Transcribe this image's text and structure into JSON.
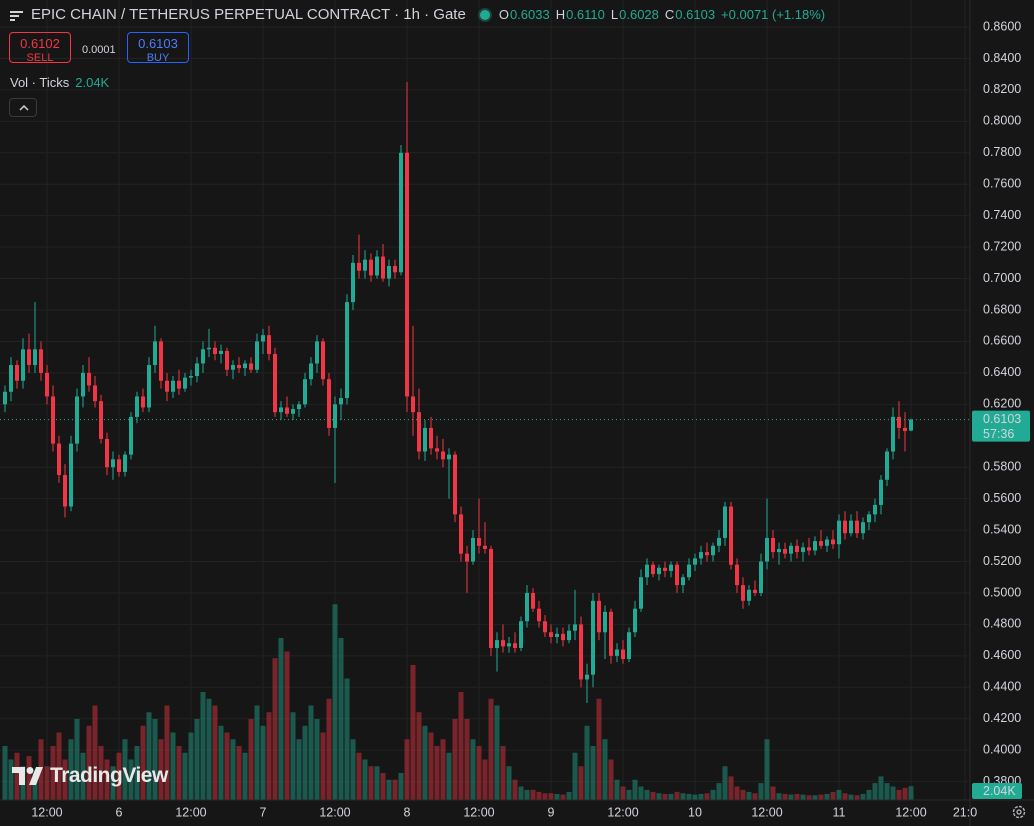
{
  "chart_data": {
    "type": "candlestick",
    "title": "EPIC CHAIN / TETHERUS PERPETUAL CONTRACT · 1h · Gate",
    "legend": [
      {
        "label": "O",
        "value": "0.6033"
      },
      {
        "label": "H",
        "value": "0.6110"
      },
      {
        "label": "L",
        "value": "0.6028"
      },
      {
        "label": "C",
        "value": "0.6103"
      }
    ],
    "change": "+0.0071 (+1.18%)",
    "sell": {
      "price": "0.6102",
      "label": "SELL"
    },
    "spread": "0.0001",
    "buy": {
      "price": "0.6103",
      "label": "BUY"
    },
    "volume_title": "Vol · Ticks",
    "volume_label": "2.04K",
    "last_price": {
      "price": 0.6103,
      "label": "0.6103",
      "countdown": "57:36"
    },
    "watermark": "TradingView",
    "up_color": "#22ab94",
    "down_color": "#f23645",
    "grid": true,
    "xlim": [
      -0.833,
      160.833
    ],
    "ylim": [
      0.3683,
      0.8772
    ],
    "volume_lim": [
      0,
      40000
    ],
    "xticks": [
      {
        "value": 7,
        "label": "12:00"
      },
      {
        "value": 19,
        "label": "6"
      },
      {
        "value": 31,
        "label": "12:00"
      },
      {
        "value": 43,
        "label": "7"
      },
      {
        "value": 55,
        "label": "12:00"
      },
      {
        "value": 67,
        "label": "8"
      },
      {
        "value": 79,
        "label": "12:00"
      },
      {
        "value": 91,
        "label": "9"
      },
      {
        "value": 103,
        "label": "12:00"
      },
      {
        "value": 115,
        "label": "10"
      },
      {
        "value": 127,
        "label": "12:00"
      },
      {
        "value": 139,
        "label": "11"
      },
      {
        "value": 151,
        "label": "12:00"
      },
      {
        "value": 160,
        "label": "21:0"
      }
    ],
    "yticks": [
      {
        "value": 0.38,
        "label": "0.3800"
      },
      {
        "value": 0.4,
        "label": "0.4000"
      },
      {
        "value": 0.42,
        "label": "0.4200"
      },
      {
        "value": 0.44,
        "label": "0.4400"
      },
      {
        "value": 0.46,
        "label": "0.4600"
      },
      {
        "value": 0.48,
        "label": "0.4800"
      },
      {
        "value": 0.5,
        "label": "0.5000"
      },
      {
        "value": 0.52,
        "label": "0.5200"
      },
      {
        "value": 0.54,
        "label": "0.5400"
      },
      {
        "value": 0.56,
        "label": "0.5600"
      },
      {
        "value": 0.58,
        "label": "0.5800"
      },
      {
        "value": 0.62,
        "label": "0.6200"
      },
      {
        "value": 0.64,
        "label": "0.6400"
      },
      {
        "value": 0.66,
        "label": "0.6600"
      },
      {
        "value": 0.68,
        "label": "0.6800"
      },
      {
        "value": 0.7,
        "label": "0.7000"
      },
      {
        "value": 0.72,
        "label": "0.7200"
      },
      {
        "value": 0.74,
        "label": "0.7400"
      },
      {
        "value": 0.76,
        "label": "0.7600"
      },
      {
        "value": 0.78,
        "label": "0.7800"
      },
      {
        "value": 0.8,
        "label": "0.8000"
      },
      {
        "value": 0.82,
        "label": "0.8200"
      },
      {
        "value": 0.84,
        "label": "0.8400"
      },
      {
        "value": 0.86,
        "label": "0.8600"
      }
    ],
    "candles": [
      [
        0.62,
        0.632,
        0.615,
        0.628
      ],
      [
        0.628,
        0.65,
        0.622,
        0.645
      ],
      [
        0.645,
        0.648,
        0.63,
        0.635
      ],
      [
        0.635,
        0.662,
        0.63,
        0.655
      ],
      [
        0.655,
        0.665,
        0.64,
        0.645
      ],
      [
        0.645,
        0.685,
        0.64,
        0.655
      ],
      [
        0.655,
        0.66,
        0.635,
        0.64
      ],
      [
        0.64,
        0.645,
        0.62,
        0.625
      ],
      [
        0.625,
        0.632,
        0.59,
        0.595
      ],
      [
        0.595,
        0.6,
        0.57,
        0.575
      ],
      [
        0.575,
        0.582,
        0.548,
        0.555
      ],
      [
        0.555,
        0.6,
        0.552,
        0.595
      ],
      [
        0.595,
        0.63,
        0.59,
        0.625
      ],
      [
        0.625,
        0.645,
        0.618,
        0.64
      ],
      [
        0.64,
        0.65,
        0.628,
        0.632
      ],
      [
        0.632,
        0.638,
        0.618,
        0.622
      ],
      [
        0.622,
        0.626,
        0.595,
        0.598
      ],
      [
        0.598,
        0.602,
        0.575,
        0.58
      ],
      [
        0.58,
        0.59,
        0.572,
        0.585
      ],
      [
        0.585,
        0.588,
        0.574,
        0.577
      ],
      [
        0.577,
        0.59,
        0.574,
        0.588
      ],
      [
        0.588,
        0.615,
        0.585,
        0.612
      ],
      [
        0.612,
        0.628,
        0.608,
        0.625
      ],
      [
        0.625,
        0.63,
        0.615,
        0.618
      ],
      [
        0.618,
        0.65,
        0.615,
        0.645
      ],
      [
        0.645,
        0.67,
        0.64,
        0.66
      ],
      [
        0.66,
        0.662,
        0.63,
        0.635
      ],
      [
        0.635,
        0.64,
        0.622,
        0.628
      ],
      [
        0.628,
        0.638,
        0.624,
        0.635
      ],
      [
        0.635,
        0.642,
        0.626,
        0.63
      ],
      [
        0.63,
        0.64,
        0.628,
        0.637
      ],
      [
        0.637,
        0.642,
        0.632,
        0.638
      ],
      [
        0.638,
        0.65,
        0.634,
        0.646
      ],
      [
        0.646,
        0.66,
        0.64,
        0.655
      ],
      [
        0.655,
        0.668,
        0.65,
        0.656
      ],
      [
        0.656,
        0.66,
        0.648,
        0.652
      ],
      [
        0.652,
        0.658,
        0.646,
        0.654
      ],
      [
        0.654,
        0.656,
        0.638,
        0.642
      ],
      [
        0.642,
        0.648,
        0.636,
        0.645
      ],
      [
        0.645,
        0.65,
        0.64,
        0.643
      ],
      [
        0.643,
        0.648,
        0.638,
        0.646
      ],
      [
        0.646,
        0.65,
        0.64,
        0.642
      ],
      [
        0.642,
        0.665,
        0.64,
        0.66
      ],
      [
        0.66,
        0.668,
        0.652,
        0.664
      ],
      [
        0.664,
        0.67,
        0.648,
        0.652
      ],
      [
        0.652,
        0.656,
        0.612,
        0.615
      ],
      [
        0.615,
        0.622,
        0.61,
        0.618
      ],
      [
        0.618,
        0.625,
        0.612,
        0.614
      ],
      [
        0.614,
        0.62,
        0.61,
        0.617
      ],
      [
        0.617,
        0.622,
        0.612,
        0.62
      ],
      [
        0.62,
        0.64,
        0.618,
        0.636
      ],
      [
        0.636,
        0.65,
        0.632,
        0.646
      ],
      [
        0.646,
        0.664,
        0.64,
        0.66
      ],
      [
        0.66,
        0.662,
        0.632,
        0.636
      ],
      [
        0.636,
        0.64,
        0.6,
        0.605
      ],
      [
        0.605,
        0.625,
        0.57,
        0.62
      ],
      [
        0.62,
        0.63,
        0.61,
        0.624
      ],
      [
        0.624,
        0.69,
        0.62,
        0.685
      ],
      [
        0.685,
        0.715,
        0.68,
        0.71
      ],
      [
        0.71,
        0.728,
        0.7,
        0.705
      ],
      [
        0.705,
        0.718,
        0.7,
        0.712
      ],
      [
        0.712,
        0.716,
        0.698,
        0.702
      ],
      [
        0.702,
        0.718,
        0.7,
        0.714
      ],
      [
        0.714,
        0.722,
        0.698,
        0.7
      ],
      [
        0.7,
        0.712,
        0.695,
        0.708
      ],
      [
        0.708,
        0.712,
        0.7,
        0.704
      ],
      [
        0.704,
        0.785,
        0.702,
        0.78
      ],
      [
        0.78,
        0.825,
        0.615,
        0.625
      ],
      [
        0.625,
        0.67,
        0.6,
        0.615
      ],
      [
        0.615,
        0.63,
        0.585,
        0.59
      ],
      [
        0.59,
        0.61,
        0.584,
        0.605
      ],
      [
        0.605,
        0.612,
        0.588,
        0.592
      ],
      [
        0.592,
        0.6,
        0.585,
        0.59
      ],
      [
        0.59,
        0.598,
        0.58,
        0.585
      ],
      [
        0.585,
        0.592,
        0.56,
        0.588
      ],
      [
        0.588,
        0.59,
        0.545,
        0.55
      ],
      [
        0.55,
        0.555,
        0.52,
        0.525
      ],
      [
        0.525,
        0.53,
        0.5,
        0.52
      ],
      [
        0.52,
        0.54,
        0.518,
        0.535
      ],
      [
        0.535,
        0.56,
        0.525,
        0.53
      ],
      [
        0.53,
        0.545,
        0.525,
        0.528
      ],
      [
        0.528,
        0.53,
        0.46,
        0.465
      ],
      [
        0.465,
        0.475,
        0.45,
        0.47
      ],
      [
        0.47,
        0.48,
        0.462,
        0.466
      ],
      [
        0.466,
        0.472,
        0.462,
        0.468
      ],
      [
        0.468,
        0.475,
        0.462,
        0.465
      ],
      [
        0.465,
        0.485,
        0.463,
        0.482
      ],
      [
        0.482,
        0.505,
        0.478,
        0.5
      ],
      [
        0.5,
        0.503,
        0.488,
        0.49
      ],
      [
        0.49,
        0.495,
        0.478,
        0.482
      ],
      [
        0.482,
        0.486,
        0.472,
        0.475
      ],
      [
        0.475,
        0.48,
        0.468,
        0.472
      ],
      [
        0.472,
        0.478,
        0.468,
        0.474
      ],
      [
        0.474,
        0.478,
        0.466,
        0.47
      ],
      [
        0.47,
        0.48,
        0.468,
        0.476
      ],
      [
        0.476,
        0.502,
        0.47,
        0.48
      ],
      [
        0.48,
        0.485,
        0.44,
        0.445
      ],
      [
        0.445,
        0.455,
        0.43,
        0.448
      ],
      [
        0.448,
        0.5,
        0.44,
        0.495
      ],
      [
        0.495,
        0.5,
        0.47,
        0.475
      ],
      [
        0.475,
        0.492,
        0.458,
        0.488
      ],
      [
        0.488,
        0.49,
        0.455,
        0.46
      ],
      [
        0.46,
        0.468,
        0.456,
        0.464
      ],
      [
        0.464,
        0.47,
        0.455,
        0.458
      ],
      [
        0.458,
        0.478,
        0.456,
        0.475
      ],
      [
        0.475,
        0.495,
        0.472,
        0.49
      ],
      [
        0.49,
        0.515,
        0.488,
        0.51
      ],
      [
        0.51,
        0.522,
        0.505,
        0.518
      ],
      [
        0.518,
        0.52,
        0.51,
        0.512
      ],
      [
        0.512,
        0.518,
        0.508,
        0.516
      ],
      [
        0.516,
        0.52,
        0.51,
        0.514
      ],
      [
        0.514,
        0.52,
        0.51,
        0.518
      ],
      [
        0.518,
        0.52,
        0.5,
        0.505
      ],
      [
        0.505,
        0.512,
        0.5,
        0.51
      ],
      [
        0.51,
        0.522,
        0.508,
        0.518
      ],
      [
        0.518,
        0.525,
        0.514,
        0.522
      ],
      [
        0.522,
        0.53,
        0.518,
        0.526
      ],
      [
        0.526,
        0.532,
        0.52,
        0.524
      ],
      [
        0.524,
        0.532,
        0.52,
        0.53
      ],
      [
        0.53,
        0.54,
        0.526,
        0.535
      ],
      [
        0.535,
        0.558,
        0.53,
        0.555
      ],
      [
        0.555,
        0.558,
        0.515,
        0.518
      ],
      [
        0.518,
        0.522,
        0.5,
        0.505
      ],
      [
        0.505,
        0.51,
        0.49,
        0.495
      ],
      [
        0.495,
        0.505,
        0.492,
        0.502
      ],
      [
        0.502,
        0.508,
        0.498,
        0.5
      ],
      [
        0.5,
        0.525,
        0.498,
        0.52
      ],
      [
        0.52,
        0.56,
        0.515,
        0.535
      ],
      [
        0.535,
        0.54,
        0.522,
        0.526
      ],
      [
        0.526,
        0.532,
        0.518,
        0.528
      ],
      [
        0.528,
        0.532,
        0.522,
        0.525
      ],
      [
        0.525,
        0.532,
        0.52,
        0.53
      ],
      [
        0.53,
        0.534,
        0.522,
        0.526
      ],
      [
        0.526,
        0.532,
        0.52,
        0.529
      ],
      [
        0.529,
        0.535,
        0.524,
        0.527
      ],
      [
        0.527,
        0.536,
        0.524,
        0.533
      ],
      [
        0.533,
        0.54,
        0.528,
        0.53
      ],
      [
        0.53,
        0.536,
        0.526,
        0.534
      ],
      [
        0.534,
        0.54,
        0.528,
        0.531
      ],
      [
        0.531,
        0.55,
        0.522,
        0.546
      ],
      [
        0.546,
        0.552,
        0.534,
        0.538
      ],
      [
        0.538,
        0.55,
        0.536,
        0.546
      ],
      [
        0.546,
        0.552,
        0.535,
        0.538
      ],
      [
        0.538,
        0.548,
        0.534,
        0.545
      ],
      [
        0.545,
        0.552,
        0.54,
        0.55
      ],
      [
        0.55,
        0.56,
        0.545,
        0.556
      ],
      [
        0.556,
        0.575,
        0.55,
        0.572
      ],
      [
        0.572,
        0.592,
        0.568,
        0.59
      ],
      [
        0.59,
        0.618,
        0.585,
        0.612
      ],
      [
        0.612,
        0.622,
        0.598,
        0.605
      ],
      [
        0.605,
        0.615,
        0.59,
        0.603
      ],
      [
        0.6033,
        0.611,
        0.6028,
        0.6103
      ]
    ],
    "volume": [
      8000,
      6000,
      7000,
      5000,
      6500,
      4000,
      9000,
      5000,
      8000,
      10000,
      6000,
      9000,
      12000,
      7000,
      11000,
      14000,
      8000,
      6000,
      5000,
      7000,
      9000,
      6000,
      8000,
      11000,
      13000,
      12000,
      9000,
      14000,
      10000,
      8000,
      7000,
      10000,
      12000,
      16000,
      15000,
      14000,
      11000,
      10000,
      9000,
      8000,
      7000,
      12000,
      14000,
      11000,
      13000,
      21000,
      24000,
      22000,
      13000,
      9000,
      11000,
      14000,
      12000,
      10000,
      15000,
      29000,
      24000,
      18000,
      9000,
      7000,
      6000,
      5000,
      5000,
      4000,
      3000,
      3000,
      4000,
      9000,
      20000,
      13000,
      11000,
      10000,
      8000,
      9000,
      7000,
      12000,
      16000,
      12000,
      9000,
      8000,
      6000,
      15000,
      14000,
      8000,
      5000,
      3000,
      2000,
      1500,
      1500,
      1200,
      1000,
      1000,
      900,
      800,
      1200,
      7000,
      5000,
      11000,
      8000,
      15000,
      9000,
      6000,
      3000,
      2000,
      1500,
      3000,
      2000,
      1500,
      1200,
      1000,
      900,
      900,
      1200,
      1000,
      900,
      800,
      900,
      1000,
      1500,
      2500,
      5000,
      3500,
      2000,
      1500,
      1200,
      1000,
      2500,
      9000,
      2000,
      1000,
      900,
      800,
      900,
      800,
      700,
      700,
      800,
      900,
      1200,
      1500,
      1000,
      800,
      700,
      900,
      1500,
      2500,
      3500,
      2500,
      2000,
      1500,
      1800,
      2040
    ]
  }
}
